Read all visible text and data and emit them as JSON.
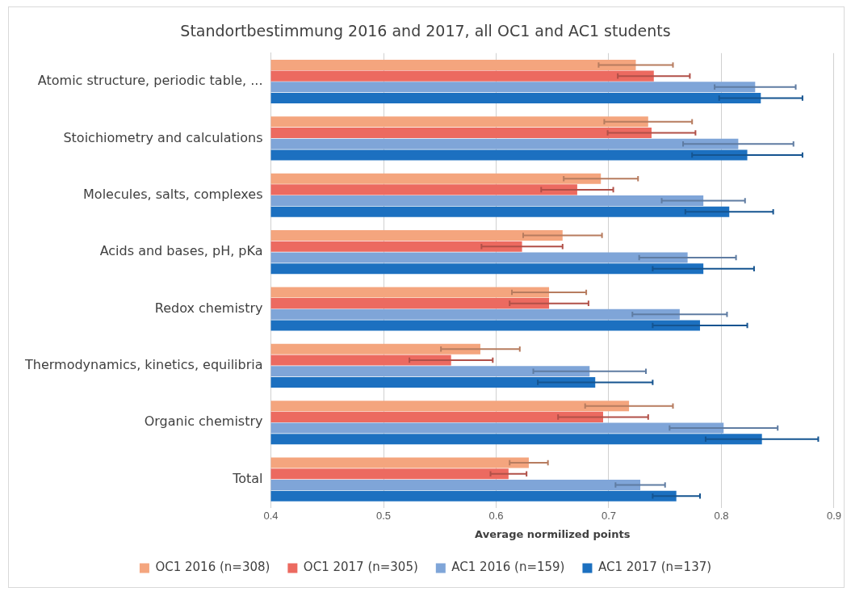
{
  "chart_data": {
    "type": "bar",
    "orientation": "horizontal",
    "title": "Standortbestimmung 2016 and 2017, all OC1 and AC1 students",
    "xlabel": "Average normilized points",
    "categories": [
      "Atomic structure, periodic table, ...",
      "Stoichiometry and calculations",
      "Molecules, salts, complexes",
      "Acids and bases, pH, pKa",
      "Redox chemistry",
      "Thermodynamics, kinetics, equilibria",
      "Organic chemistry",
      "Total"
    ],
    "series": [
      {
        "name": "OC1 2016 (n=308)",
        "color": "#f4a57e",
        "values": [
          0.724,
          0.735,
          0.693,
          0.659,
          0.647,
          0.586,
          0.718,
          0.629
        ],
        "errors": [
          0.033,
          0.039,
          0.033,
          0.035,
          0.033,
          0.035,
          0.039,
          0.017
        ]
      },
      {
        "name": "OC1 2017 (n=305)",
        "color": "#ec6a60",
        "values": [
          0.74,
          0.738,
          0.672,
          0.623,
          0.647,
          0.56,
          0.695,
          0.611
        ],
        "errors": [
          0.032,
          0.039,
          0.032,
          0.036,
          0.035,
          0.037,
          0.04,
          0.016
        ]
      },
      {
        "name": "AC1 2016 (n=159)",
        "color": "#7fa5d8",
        "values": [
          0.83,
          0.815,
          0.784,
          0.77,
          0.763,
          0.683,
          0.802,
          0.728
        ],
        "errors": [
          0.036,
          0.049,
          0.037,
          0.043,
          0.042,
          0.05,
          0.048,
          0.022
        ]
      },
      {
        "name": "AC1 2017 (n=137)",
        "color": "#1c70c0",
        "values": [
          0.835,
          0.823,
          0.807,
          0.784,
          0.781,
          0.688,
          0.836,
          0.76
        ],
        "errors": [
          0.037,
          0.049,
          0.039,
          0.045,
          0.042,
          0.051,
          0.05,
          0.021
        ]
      }
    ],
    "xlim": [
      0.4,
      0.9
    ],
    "xticks": [
      0.4,
      0.5,
      0.6,
      0.7,
      0.8,
      0.9
    ],
    "grid": "x",
    "legend": "bottom"
  }
}
